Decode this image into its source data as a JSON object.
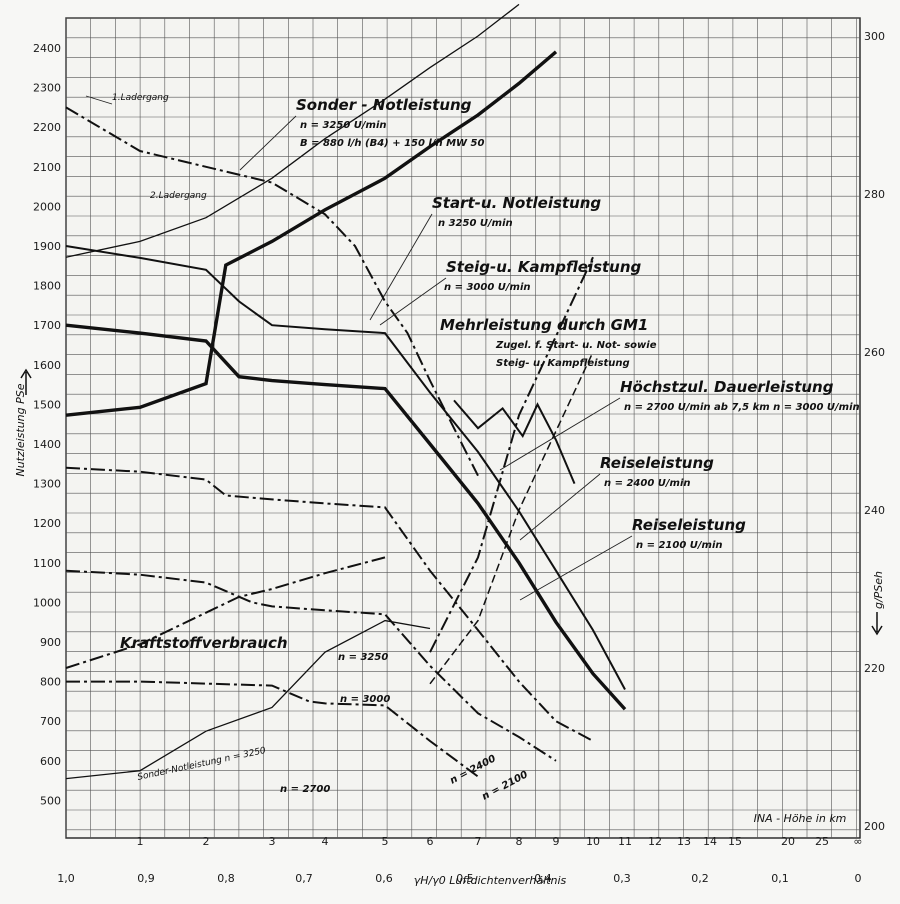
{
  "chart_data": {
    "type": "line",
    "ylabel": "Nutzleistung  PSe",
    "ylabel_right": "g/PSeh",
    "xlabel": "γH/γ0  Luftdichtenverhältnis",
    "xlabel_secondary": "INA - Höhe in km",
    "grid": true,
    "y_left": {
      "lim": [
        400,
        2450
      ],
      "ticks": [
        500,
        600,
        700,
        800,
        900,
        1000,
        1100,
        1200,
        1300,
        1400,
        1500,
        1600,
        1700,
        1800,
        1900,
        2000,
        2100,
        2200,
        2300,
        2400
      ]
    },
    "y_right": {
      "lim": [
        200,
        310
      ],
      "ticks": [
        200,
        220,
        240,
        260,
        280,
        300
      ]
    },
    "x_height_ticks": [
      "1",
      "2",
      "3",
      "4",
      "5",
      "6",
      "7",
      "8",
      "9",
      "10",
      "11",
      "12",
      "13",
      "14",
      "15",
      "20",
      "25",
      "∞"
    ],
    "x_density_ticks": [
      "1,0",
      "0,9",
      "0,8",
      "0,7",
      "0,6",
      "0,5",
      "0,4",
      "0,3",
      "0,2",
      "0,1",
      "0"
    ],
    "annotations": [
      {
        "id": "lader1",
        "text": "1.Ladergang"
      },
      {
        "id": "lader2",
        "text": "2.Ladergang"
      },
      {
        "id": "sonder",
        "text": "Sonder - Notleistung"
      },
      {
        "id": "sonder_n",
        "text": "n = 3250 U/min"
      },
      {
        "id": "sonder_b",
        "text": "B = 880 l/h (B4) + 150 l/h MW 50"
      },
      {
        "id": "start",
        "text": "Start-u. Notleistung"
      },
      {
        "id": "start_n",
        "text": "n  3250 U/min"
      },
      {
        "id": "steig",
        "text": "Steig-u. Kampfleistung"
      },
      {
        "id": "steig_n",
        "text": "n = 3000 U/min"
      },
      {
        "id": "gm1",
        "text": "Mehrleistung durch GM1"
      },
      {
        "id": "gm1_a",
        "text": "Zugel. f. Start- u. Not- sowie"
      },
      {
        "id": "gm1_b",
        "text": "Steig- u. Kampfleistung"
      },
      {
        "id": "dauer",
        "text": "Höchstzul. Dauerleistung"
      },
      {
        "id": "dauer_n",
        "text": "n = 2700 U/min  ab 7,5 km  n = 3000 U/min"
      },
      {
        "id": "reise1",
        "text": "Reiseleistung"
      },
      {
        "id": "reise1_n",
        "text": "n = 2400 U/min"
      },
      {
        "id": "reise2",
        "text": "Reiseleistung"
      },
      {
        "id": "reise2_n",
        "text": "n = 2100 U/min"
      },
      {
        "id": "kraft",
        "text": "Kraftstoffverbrauch"
      },
      {
        "id": "k3250",
        "text": "n = 3250"
      },
      {
        "id": "k3000",
        "text": "n = 3000"
      },
      {
        "id": "k2700",
        "text": "n = 2700"
      },
      {
        "id": "k2400",
        "text": "n = 2400"
      },
      {
        "id": "k2100",
        "text": "n = 2100"
      },
      {
        "id": "ksonder",
        "text": "Sonder-Notleistung  n = 3250"
      }
    ],
    "series": [
      {
        "name": "Sonder-Notleistung",
        "axis": "left",
        "style": "dashdot",
        "x": [
          0,
          1,
          2,
          3,
          4,
          4.5,
          5,
          5.5,
          6,
          6.5,
          7
        ],
        "y": [
          2250,
          2140,
          2100,
          2060,
          1980,
          1900,
          1760,
          1680,
          1560,
          1440,
          1320
        ]
      },
      {
        "name": "Start-u. Notleistung",
        "axis": "left",
        "style": "solid",
        "x": [
          0,
          1,
          2,
          2.5,
          3,
          4,
          5,
          6,
          7,
          8,
          9,
          10,
          11
        ],
        "y": [
          1900,
          1870,
          1840,
          1760,
          1700,
          1690,
          1680,
          1530,
          1380,
          1230,
          1080,
          930,
          780
        ]
      },
      {
        "name": "Steig-u. Kampfleistung",
        "axis": "left",
        "style": "solid-bold",
        "x": [
          0,
          1,
          2,
          2.5,
          3,
          4,
          5,
          6,
          7,
          8,
          9,
          10,
          11
        ],
        "y": [
          1700,
          1680,
          1660,
          1570,
          1560,
          1550,
          1540,
          1400,
          1250,
          1100,
          950,
          820,
          730
        ]
      },
      {
        "name": "Mehrleistung durch GM1",
        "axis": "left",
        "style": "solid",
        "x": [
          6.5,
          7,
          7.6,
          8.1,
          8.5,
          9,
          9.5
        ],
        "y": [
          1510,
          1440,
          1490,
          1420,
          1500,
          1410,
          1300
        ]
      },
      {
        "name": "Höchstzul. Dauerleistung",
        "axis": "left",
        "style": "dashdot",
        "x": [
          0,
          1,
          2,
          2.3,
          3,
          4,
          5,
          6,
          7,
          8,
          9,
          10
        ],
        "y": [
          1340,
          1330,
          1310,
          1270,
          1260,
          1250,
          1240,
          1080,
          930,
          800,
          700,
          650
        ]
      },
      {
        "name": "Reiseleistung n=2400",
        "axis": "left",
        "style": "dashdot",
        "x": [
          0,
          1,
          2,
          2.7,
          3,
          4,
          5,
          6,
          7,
          8,
          9
        ],
        "y": [
          1080,
          1070,
          1050,
          1000,
          990,
          980,
          970,
          840,
          720,
          660,
          600
        ]
      },
      {
        "name": "Reiseleistung n=2100",
        "axis": "left",
        "style": "dashdot",
        "x": [
          0,
          1,
          2,
          3,
          3.7,
          4,
          5,
          6,
          7
        ],
        "y": [
          800,
          800,
          795,
          790,
          750,
          745,
          740,
          650,
          560
        ]
      },
      {
        "name": "n=3250",
        "axis": "right",
        "style": "solid-thin",
        "x": [
          0,
          1,
          2,
          3,
          4,
          5,
          6,
          7,
          8
        ],
        "y": [
          272,
          274,
          277,
          282,
          287,
          292,
          296,
          300,
          304
        ]
      },
      {
        "name": "n=3000",
        "axis": "right",
        "style": "solid-bold",
        "x": [
          0,
          1,
          2,
          2.3,
          3,
          4,
          5,
          6,
          7,
          8,
          9
        ],
        "y": [
          252,
          253,
          256,
          271,
          274,
          278,
          282,
          286,
          290,
          294,
          298
        ]
      },
      {
        "name": "Sonder-Notleistung g/PSeh",
        "axis": "right",
        "style": "dashdot",
        "x": [
          0,
          1,
          2,
          2.5,
          3,
          4,
          5
        ],
        "y": [
          220,
          223,
          227,
          229,
          230,
          232,
          234
        ]
      },
      {
        "name": "n=2700",
        "axis": "right",
        "style": "solid-thin",
        "x": [
          0,
          1,
          2,
          3,
          4,
          5,
          6
        ],
        "y": [
          206,
          207,
          212,
          215,
          222,
          226,
          225
        ]
      },
      {
        "name": "n=2400",
        "axis": "right",
        "style": "dashdot",
        "x": [
          6,
          7,
          8,
          9,
          10
        ],
        "y": [
          222,
          234,
          252,
          262,
          272
        ]
      },
      {
        "name": "n=2100",
        "axis": "right",
        "style": "dashed",
        "x": [
          6,
          7,
          8,
          9,
          10
        ],
        "y": [
          218,
          226,
          240,
          250,
          260
        ]
      }
    ]
  }
}
